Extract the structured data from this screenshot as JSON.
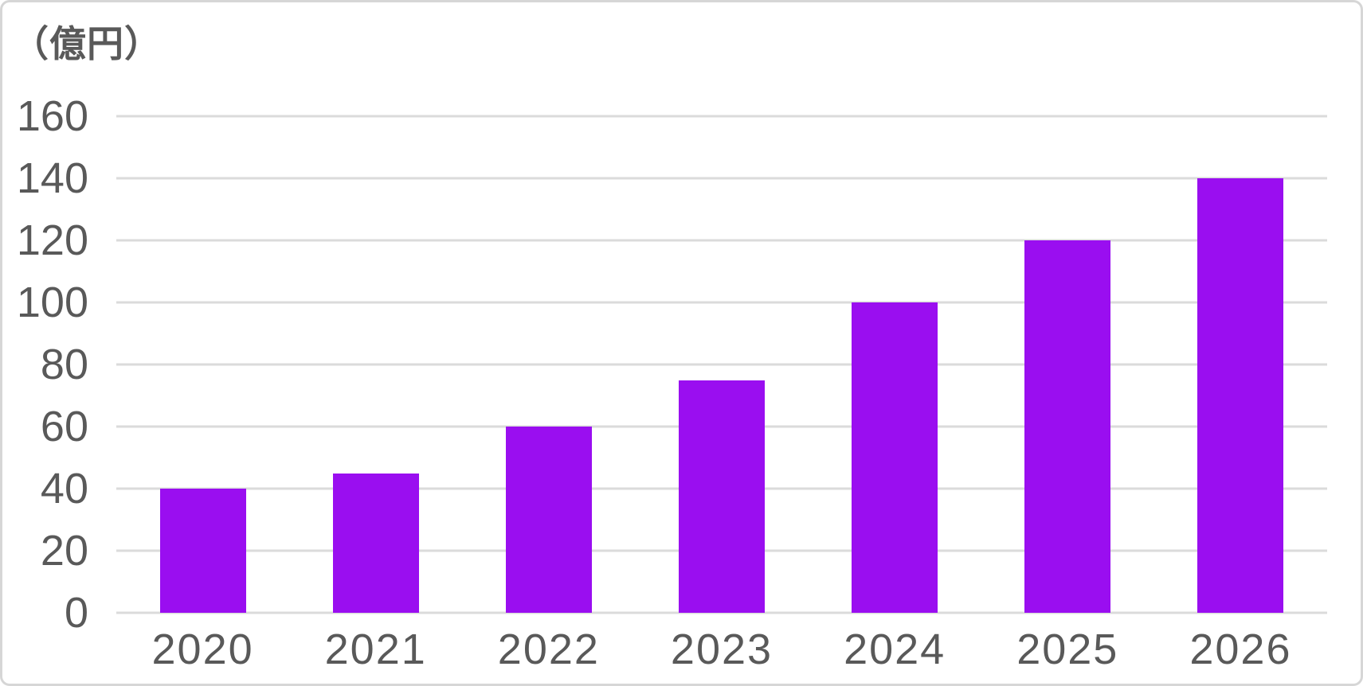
{
  "chart_data": {
    "type": "bar",
    "title": "",
    "unit_label": "（億円）",
    "categories": [
      "2020",
      "2021",
      "2022",
      "2023",
      "2024",
      "2025",
      "2026"
    ],
    "values": [
      40,
      45,
      60,
      75,
      100,
      120,
      140
    ],
    "xlabel": "",
    "ylabel": "（億円）",
    "ylim": [
      0,
      160
    ],
    "yticks": [
      0,
      20,
      40,
      60,
      80,
      100,
      120,
      140,
      160
    ],
    "grid": "horizontal",
    "legend": "none",
    "colors": {
      "bar": "#9a0ef0",
      "text": "#595959",
      "gridline": "#dbdbdb",
      "background": "#ffffff",
      "frame_border": "#d6d6d6"
    }
  }
}
